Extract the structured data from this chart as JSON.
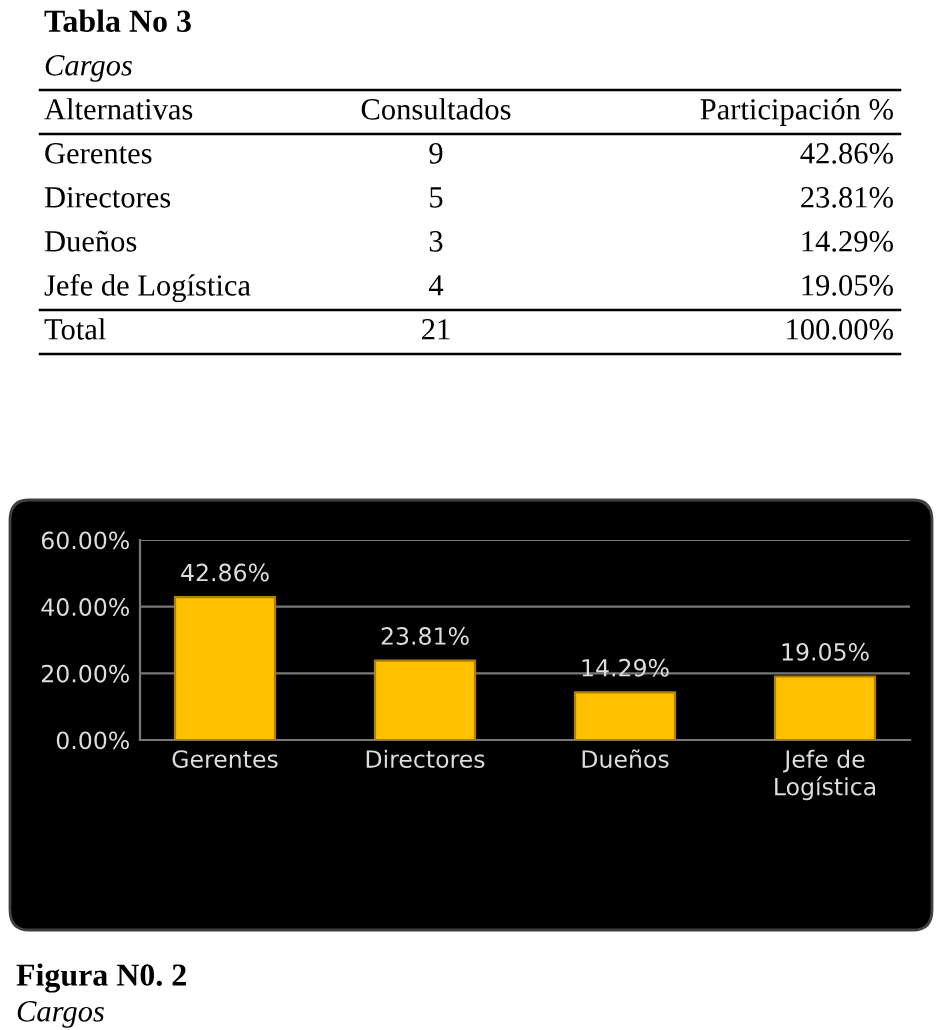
{
  "chart_data": [
    {
      "type": "other",
      "title": "Tabla No 3",
      "subtitle": "Cargos",
      "annotations": [
        "Alternativas",
        "Consultados",
        "Participación %",
        "Gerentes",
        "9",
        "42.86%",
        "Directores",
        "5",
        "23.81%",
        "Dueños",
        "3",
        "14.29%",
        "Jefe de Logística",
        "4",
        "19.05%",
        "Total",
        "21",
        "100.00%"
      ]
    },
    {
      "type": "bar",
      "title": "Figura N0. 2",
      "subtitle": "Cargos",
      "categories": [
        "Gerentes",
        "Directores",
        "Dueños",
        "Jefe de\nLogística"
      ],
      "values": [
        42.86,
        23.81,
        14.29,
        19.05
      ],
      "color": "#ffc000",
      "value_labels": [
        "42.86%",
        "23.81%",
        "14.29%",
        "19.05%"
      ],
      "ylim": [
        0,
        60
      ],
      "yticks": [
        {
          "value": 0,
          "label": "0.00%"
        },
        {
          "value": 20,
          "label": "20.00%"
        },
        {
          "value": 40,
          "label": "40.00%"
        },
        {
          "value": 60,
          "label": "60.00%"
        }
      ],
      "grid": "y"
    }
  ]
}
